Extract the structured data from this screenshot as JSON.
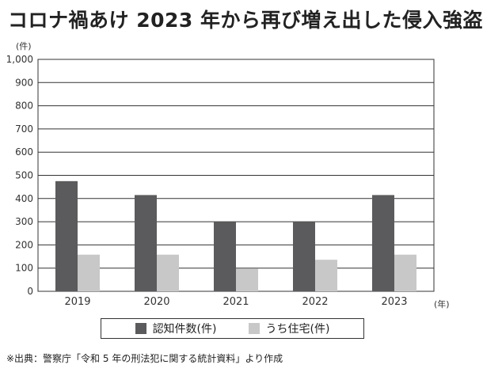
{
  "title": "コロナ禍あけ 2023 年から再び増え出した侵入強盗",
  "y_unit": "(件)",
  "x_unit": "(年)",
  "source": "※出典：警察庁「令和 5 年の刑法犯に関する統計資料」より作成",
  "colors": {
    "series_1": "#5b5b5d",
    "series_2": "#c8c8c9",
    "axis": "#333333",
    "grid": "#333333"
  },
  "chart_data": {
    "type": "bar",
    "categories": [
      "2019",
      "2020",
      "2021",
      "2022",
      "2023"
    ],
    "series": [
      {
        "name": "認知件数(件)",
        "values": [
          475,
          415,
          300,
          300,
          415
        ]
      },
      {
        "name": "うち住宅(件)",
        "values": [
          158,
          158,
          97,
          136,
          158
        ]
      }
    ],
    "ylim": [
      0,
      1000
    ],
    "yticks": [
      "0",
      "100",
      "200",
      "300",
      "400",
      "500",
      "600",
      "700",
      "800",
      "900",
      "1,000"
    ],
    "grid": true,
    "legend_position": "bottom"
  }
}
